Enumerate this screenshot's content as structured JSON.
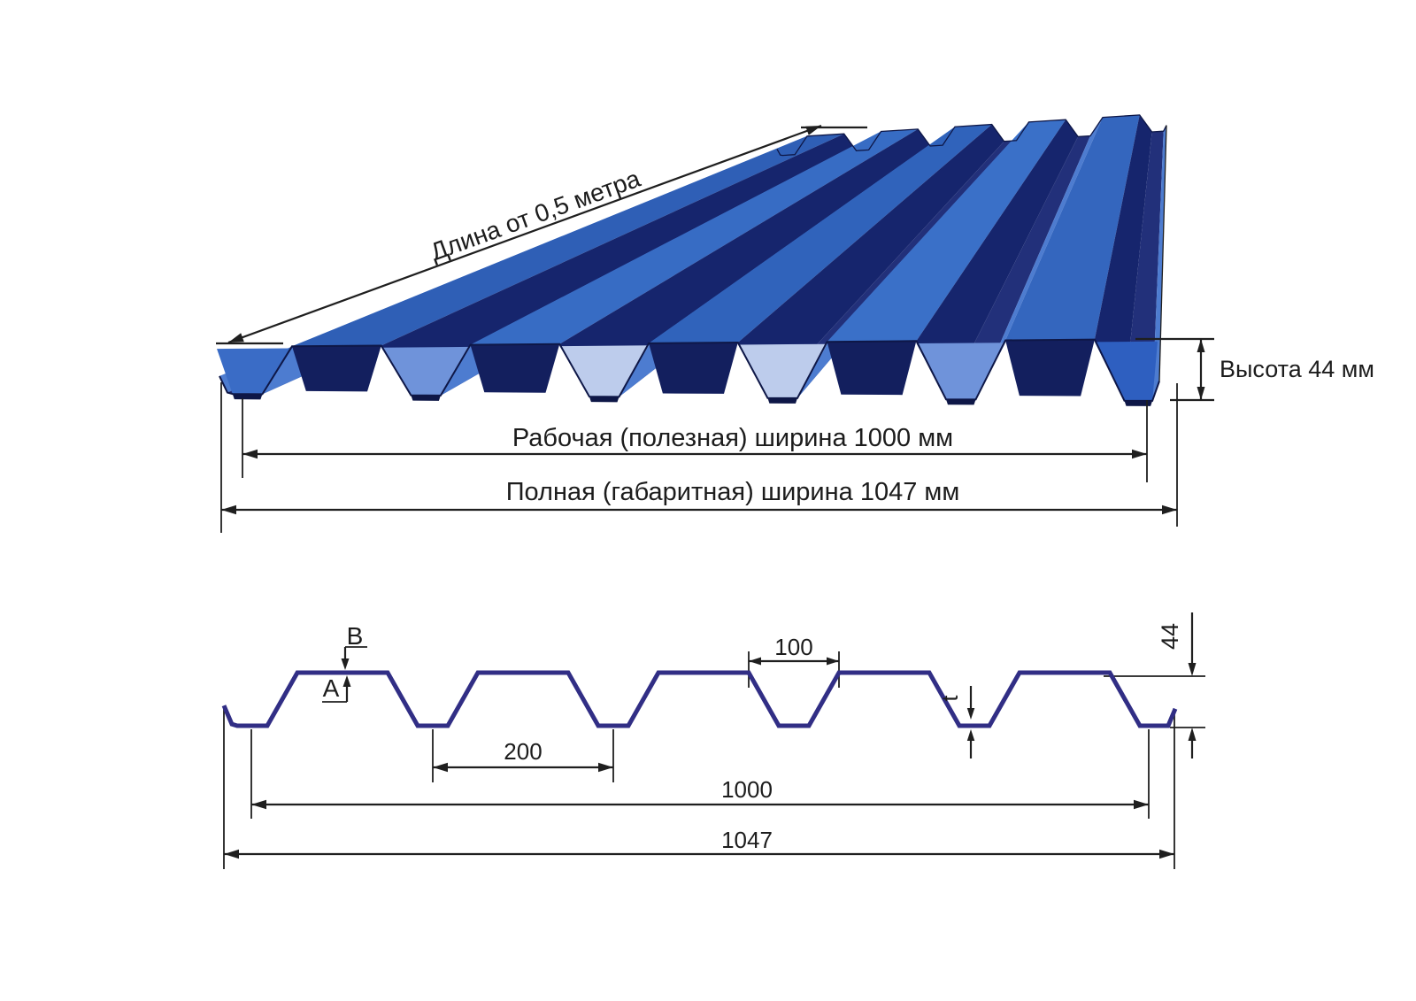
{
  "view3d": {
    "length_label": "Длина от 0,5 метра",
    "height_label": "Высота 44 мм",
    "working_width_label": "Рабочая (полезная) ширина 1000 мм",
    "overall_width_label": "Полная (габаритная) ширина 1047 мм"
  },
  "profile2d": {
    "top_coat_label": "B",
    "bottom_coat_label": "A",
    "rib_opening_label": "100",
    "pitch_label": "200",
    "working_width_label": "1000",
    "overall_width_label": "1047",
    "height_label": "44",
    "thickness_label": "t"
  },
  "colors": {
    "background": "#ffffff",
    "dimension": "#1f1f1f",
    "profile_stroke": "#312e85",
    "sheet_crest": "#3467c0",
    "sheet_slope_dark": "#16256d",
    "sheet_slope_light": "#4d7cd0",
    "sheet_valley": "#22307a",
    "sheet_channel": "#131f5e",
    "sheet_leg_pale": "#bdccec",
    "sheet_outline": "#0e1747"
  }
}
